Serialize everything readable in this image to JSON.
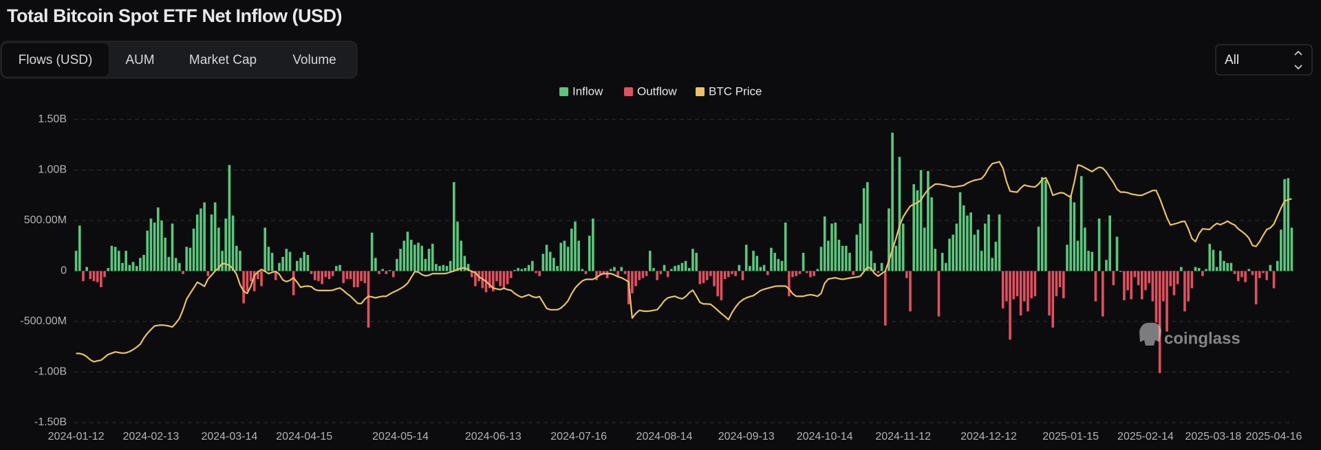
{
  "header": {
    "title": "Total Bitcoin Spot ETF Net Inflow (USD)",
    "tabs": [
      "Flows (USD)",
      "AUM",
      "Market Cap",
      "Volume"
    ],
    "active_tab": 0,
    "range_select": "All"
  },
  "watermark": "coinglass",
  "chart_data": {
    "type": "bar",
    "grid": true,
    "legend": "top",
    "ylim": [
      -1500,
      1500
    ],
    "yticks": [
      {
        "value": 1500,
        "label": "1.50B"
      },
      {
        "value": 1000,
        "label": "1.00B"
      },
      {
        "value": 500,
        "label": "500.00M"
      },
      0,
      {
        "value": -500,
        "label": "-500.00M"
      },
      {
        "value": -1000,
        "label": "-1.00B"
      },
      {
        "value": -1500,
        "label": "-1.50B"
      }
    ],
    "y2lim": [
      24400,
      119200
    ],
    "categories": [
      "2024-01-12",
      null,
      null,
      null,
      null,
      null,
      null,
      null,
      null,
      null,
      null,
      null,
      null,
      null,
      null,
      null,
      null,
      null,
      null,
      null,
      null,
      "2024-02-13",
      null,
      null,
      null,
      null,
      null,
      null,
      null,
      null,
      null,
      null,
      null,
      null,
      null,
      null,
      null,
      null,
      null,
      null,
      null,
      null,
      null,
      "2024-03-14",
      null,
      null,
      null,
      null,
      null,
      null,
      null,
      null,
      null,
      null,
      null,
      null,
      null,
      null,
      null,
      null,
      null,
      null,
      null,
      null,
      "2024-04-15",
      null,
      null,
      null,
      null,
      null,
      null,
      null,
      null,
      null,
      null,
      null,
      null,
      null,
      null,
      null,
      null,
      null,
      null,
      null,
      null,
      null,
      null,
      null,
      null,
      null,
      null,
      "2024-05-14",
      null,
      null,
      null,
      null,
      null,
      null,
      null,
      null,
      null,
      null,
      null,
      null,
      null,
      null,
      null,
      null,
      null,
      null,
      null,
      null,
      null,
      null,
      null,
      null,
      null,
      "2024-06-13",
      null,
      null,
      null,
      null,
      null,
      null,
      null,
      null,
      null,
      null,
      null,
      null,
      null,
      null,
      null,
      null,
      null,
      null,
      null,
      null,
      null,
      null,
      null,
      "2024-07-16",
      null,
      null,
      null,
      null,
      null,
      null,
      null,
      null,
      null,
      null,
      null,
      null,
      null,
      null,
      null,
      null,
      null,
      null,
      null,
      null,
      null,
      null,
      null,
      "2024-08-14",
      null,
      null,
      null,
      null,
      null,
      null,
      null,
      null,
      null,
      null,
      null,
      null,
      null,
      null,
      null,
      null,
      null,
      null,
      null,
      null,
      null,
      null,
      "2024-09-13",
      null,
      null,
      null,
      null,
      null,
      null,
      null,
      null,
      null,
      null,
      null,
      null,
      null,
      null,
      null,
      null,
      null,
      null,
      null,
      null,
      null,
      "2024-10-14",
      null,
      null,
      null,
      null,
      null,
      null,
      null,
      null,
      null,
      null,
      null,
      null,
      null,
      null,
      null,
      null,
      null,
      null,
      null,
      null,
      null,
      "2024-11-12",
      null,
      null,
      null,
      null,
      null,
      null,
      null,
      null,
      null,
      null,
      null,
      null,
      null,
      null,
      null,
      null,
      null,
      null,
      null,
      null,
      null,
      null,
      null,
      "2024-12-12",
      null,
      null,
      null,
      null,
      null,
      null,
      null,
      null,
      null,
      null,
      null,
      null,
      null,
      null,
      null,
      null,
      null,
      null,
      null,
      null,
      null,
      null,
      "2025-01-15",
      null,
      null,
      null,
      null,
      null,
      null,
      null,
      null,
      null,
      null,
      null,
      null,
      null,
      null,
      null,
      null,
      null,
      null,
      null,
      null,
      "2025-02-14",
      null,
      null,
      null,
      null,
      null,
      null,
      null,
      null,
      null,
      null,
      null,
      null,
      null,
      null,
      null,
      null,
      null,
      null,
      "2025-03-18",
      null,
      null,
      null,
      null,
      null,
      null,
      null,
      null,
      null,
      null,
      null,
      null,
      null,
      null,
      null,
      null,
      "2025-04-16",
      null,
      null,
      null,
      null,
      null
    ],
    "values": [
      200,
      450,
      -100,
      40,
      -80,
      -100,
      -110,
      -160,
      -60,
      30,
      250,
      240,
      200,
      80,
      200,
      60,
      90,
      50,
      130,
      160,
      400,
      520,
      480,
      630,
      500,
      330,
      140,
      470,
      130,
      80,
      -30,
      240,
      230,
      420,
      560,
      620,
      680,
      -50,
      560,
      680,
      430,
      200,
      520,
      1050,
      550,
      250,
      200,
      -320,
      -200,
      -100,
      -200,
      -80,
      -150,
      430,
      240,
      180,
      -90,
      80,
      140,
      220,
      190,
      -240,
      100,
      130,
      190,
      160,
      -30,
      -90,
      -100,
      -130,
      -60,
      -80,
      -50,
      50,
      60,
      -120,
      -80,
      -80,
      -160,
      -160,
      -100,
      -120,
      -560,
      380,
      130,
      -30,
      20,
      -30,
      10,
      -60,
      120,
      220,
      300,
      390,
      310,
      260,
      280,
      250,
      120,
      220,
      270,
      70,
      50,
      60,
      50,
      100,
      880,
      490,
      300,
      150,
      70,
      -60,
      -150,
      -100,
      -170,
      -210,
      -170,
      -200,
      -100,
      -150,
      -170,
      -130,
      -70,
      10,
      30,
      20,
      30,
      60,
      100,
      -20,
      -50,
      170,
      260,
      190,
      130,
      50,
      280,
      300,
      240,
      420,
      490,
      300,
      20,
      -30,
      350,
      520,
      -90,
      -30,
      -20,
      -70,
      20,
      40,
      -50,
      40,
      -30,
      -330,
      -220,
      -150,
      -90,
      -70,
      -50,
      200,
      30,
      -90,
      -30,
      60,
      -60,
      20,
      50,
      60,
      80,
      100,
      30,
      220,
      180,
      -130,
      -120,
      -90,
      -50,
      -150,
      -250,
      -290,
      -80,
      -60,
      -30,
      -50,
      60,
      -90,
      260,
      50,
      200,
      150,
      40,
      60,
      -40,
      230,
      180,
      120,
      100,
      480,
      -250,
      -60,
      -50,
      -30,
      180,
      -20,
      -60,
      -50,
      20,
      240,
      540,
      300,
      470,
      480,
      310,
      250,
      250,
      180,
      -40,
      360,
      470,
      820,
      880,
      200,
      80,
      -20,
      80,
      -540,
      620,
      1370,
      250,
      1130,
      470,
      -70,
      -400,
      860,
      800,
      1000,
      430,
      990,
      730,
      220,
      -450,
      180,
      80,
      320,
      360,
      470,
      780,
      650,
      550,
      580,
      360,
      410,
      200,
      470,
      560,
      130,
      290,
      560,
      -370,
      -300,
      -680,
      -280,
      -250,
      -440,
      -300,
      -400,
      -270,
      -250,
      440,
      930,
      900,
      -440,
      -560,
      -250,
      -160,
      -270,
      260,
      750,
      680,
      300,
      940,
      430,
      200,
      190,
      -300,
      520,
      -450,
      110,
      550,
      -140,
      340,
      -10,
      -290,
      -190,
      -280,
      -60,
      -140,
      -280,
      -190,
      -120,
      -300,
      -510,
      -1010,
      -300,
      -600,
      -150,
      -240,
      -130,
      40,
      -400,
      -300,
      -170,
      40,
      30,
      -50,
      20,
      270,
      210,
      40,
      200,
      100,
      80,
      80,
      -30,
      -100,
      -60,
      -110,
      20,
      -40,
      -330,
      -70,
      -20,
      -90,
      60,
      -170,
      100,
      410,
      910,
      920,
      430
    ],
    "series": [
      {
        "name": "Inflow",
        "color": "#5cc67c"
      },
      {
        "name": "Outflow",
        "color": "#e0505e"
      },
      {
        "name": "BTC Price",
        "color": "#ebc363",
        "type": "line",
        "axis": "y2",
        "values": [
          46000,
          46000,
          45700,
          45000,
          44000,
          43400,
          43700,
          43900,
          44800,
          45700,
          46100,
          46500,
          46300,
          46100,
          46200,
          46600,
          47200,
          48000,
          48900,
          50800,
          52300,
          53500,
          54600,
          54800,
          54900,
          54800,
          54600,
          54300,
          55500,
          57000,
          59700,
          63000,
          64800,
          66500,
          68300,
          67700,
          67000,
          69300,
          70500,
          71800,
          72700,
          74200,
          74000,
          73600,
          72500,
          70800,
          67500,
          65500,
          64800,
          67000,
          70400,
          71500,
          72300,
          71700,
          71000,
          71400,
          71700,
          70800,
          69000,
          68500,
          68900,
          69700,
          68300,
          66700,
          67000,
          67100,
          66900,
          66000,
          65700,
          65700,
          65700,
          65700,
          65800,
          66200,
          66500,
          65700,
          64700,
          63900,
          62800,
          61700,
          61600,
          63000,
          63900,
          63700,
          63400,
          63700,
          63900,
          63900,
          64600,
          65200,
          65700,
          66300,
          67000,
          68000,
          69800,
          71600,
          71500,
          70700,
          70300,
          70500,
          71000,
          71000,
          71000,
          71000,
          71100,
          71500,
          71800,
          72300,
          72700,
          72800,
          72200,
          71700,
          71300,
          70000,
          69300,
          68600,
          67500,
          66500,
          66200,
          66000,
          66400,
          66000,
          65800,
          64800,
          64100,
          63600,
          64000,
          64400,
          63800,
          63500,
          63800,
          62000,
          60100,
          59700,
          59700,
          59700,
          60200,
          61200,
          62500,
          64700,
          66500,
          67700,
          68700,
          69200,
          69200,
          69200,
          69800,
          70600,
          71000,
          71000,
          71000,
          70600,
          70000,
          69700,
          69100,
          68400,
          57100,
          58500,
          59500,
          59300,
          59200,
          59300,
          59500,
          59700,
          61000,
          62500,
          63400,
          63700,
          63900,
          63400,
          63100,
          63800,
          65000,
          65800,
          64000,
          62000,
          61500,
          61500,
          61400,
          60500,
          59500,
          58500,
          57600,
          56600,
          58800,
          60500,
          61900,
          62800,
          63400,
          63800,
          64100,
          64900,
          65700,
          66100,
          66400,
          66700,
          67000,
          67100,
          67100,
          67100,
          66200,
          64700,
          63900,
          63900,
          63900,
          64200,
          64400,
          64200,
          63900,
          64800,
          68000,
          69300,
          69500,
          69700,
          69400,
          69200,
          69400,
          69600,
          69800,
          69900,
          70200,
          71600,
          73000,
          72600,
          71000,
          70200,
          71000,
          71800,
          75000,
          78500,
          82000,
          86000,
          88700,
          90500,
          92100,
          92700,
          93200,
          94000,
          95800,
          97300,
          98200,
          99000,
          99000,
          98800,
          98600,
          98300,
          98100,
          98200,
          98400,
          98600,
          99300,
          99800,
          100200,
          100400,
          100700,
          102000,
          104000,
          105400,
          105700,
          106000,
          104000,
          99800,
          96800,
          96600,
          96500,
          97800,
          98700,
          98400,
          98200,
          98100,
          99000,
          100400,
          101000,
          98700,
          95500,
          95900,
          96300,
          96200,
          95500,
          94900,
          99500,
          105000,
          104700,
          104100,
          103500,
          102900,
          103700,
          104300,
          104000,
          102800,
          101100,
          99500,
          97400,
          96500,
          96500,
          96300,
          95900,
          95700,
          95500,
          95500,
          96000,
          96500,
          97000,
          97000,
          94500,
          91500,
          88500,
          86200,
          86500,
          86800,
          87200,
          87400,
          85000,
          82000,
          81000,
          83500,
          85000,
          84900,
          84800,
          85900,
          86700,
          86300,
          86800,
          87400,
          86700,
          86200,
          85000,
          84200,
          83300,
          82100,
          79800,
          79500,
          81000,
          83000,
          84800,
          85300,
          86500,
          89000,
          91500,
          93700,
          94100,
          94400
        ]
      }
    ]
  }
}
